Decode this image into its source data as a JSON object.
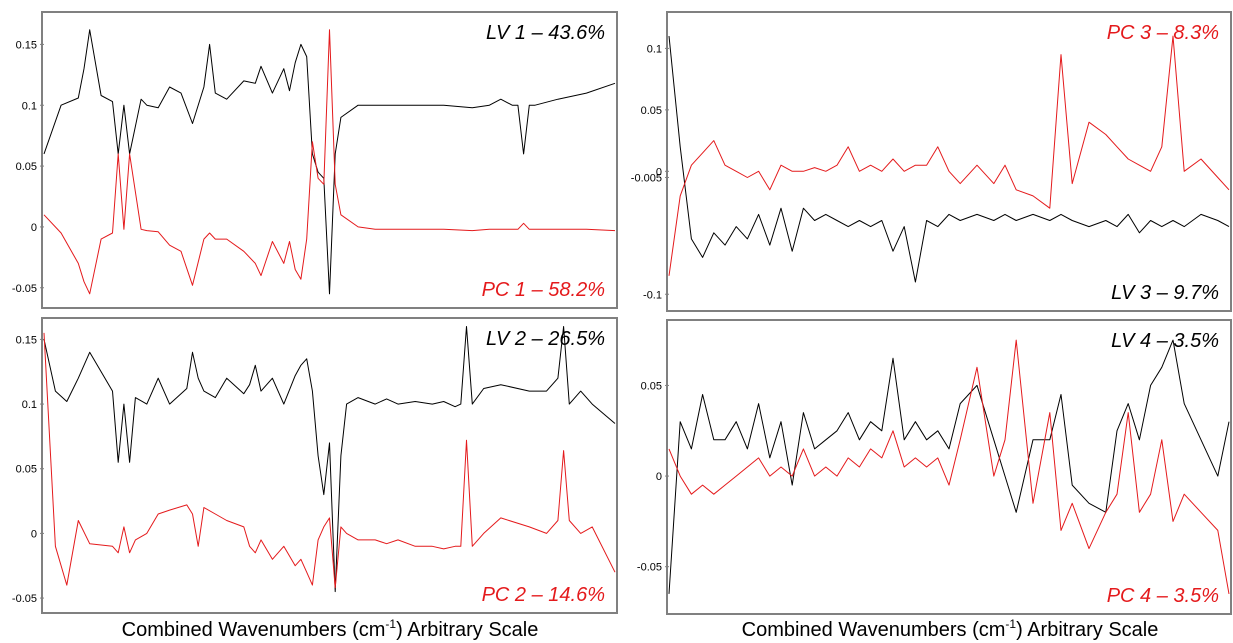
{
  "figure": {
    "left_xlabel": {
      "pre": "Combined Wavenumbers (cm",
      "sup": "-1",
      "post": ") Arbitrary Scale"
    },
    "right_xlabel": {
      "pre": "Combined Wavenumbers (cm",
      "sup": "-1",
      "post": ") Arbitrary Scale"
    }
  },
  "chart_data": [
    {
      "type": "line",
      "panel": "top-left",
      "ylim": [
        -0.065,
        0.175
      ],
      "yticks": [
        -0.05,
        0,
        0.05,
        0.1,
        0.15
      ],
      "ytick_labels": [
        "-0.05",
        "0",
        "0.05",
        "0.1",
        "0.15"
      ],
      "xlim": [
        0,
        100
      ],
      "annotations": [
        {
          "text": "LV 1 – 43.6%",
          "color": "#000000",
          "position": "top-right"
        },
        {
          "text": "PC 1 – 58.2%",
          "color": "#e41a1c",
          "position": "bottom-right"
        }
      ],
      "series": [
        {
          "color": "#000000",
          "x": [
            0,
            3,
            6,
            7,
            8,
            10,
            12,
            13,
            14,
            15,
            17,
            18,
            20,
            22,
            24,
            26,
            28,
            29,
            30,
            32,
            35,
            37,
            38,
            40,
            42,
            43,
            44,
            45,
            46,
            47,
            48,
            49,
            50,
            51,
            52,
            55,
            58,
            60,
            62,
            65,
            66,
            67,
            68,
            70,
            75,
            78,
            80,
            82,
            83,
            84,
            85,
            86,
            90,
            95,
            100
          ],
          "y": [
            0.06,
            0.1,
            0.106,
            0.13,
            0.162,
            0.108,
            0.103,
            0.06,
            0.1,
            0.06,
            0.105,
            0.1,
            0.098,
            0.115,
            0.11,
            0.085,
            0.115,
            0.15,
            0.11,
            0.105,
            0.12,
            0.118,
            0.132,
            0.11,
            0.13,
            0.112,
            0.135,
            0.15,
            0.14,
            0.06,
            0.045,
            0.04,
            -0.055,
            0.06,
            0.09,
            0.1,
            0.1,
            0.1,
            0.1,
            0.1,
            0.1,
            0.1,
            0.1,
            0.1,
            0.098,
            0.1,
            0.105,
            0.1,
            0.1,
            0.06,
            0.1,
            0.1,
            0.105,
            0.11,
            0.118
          ]
        },
        {
          "color": "#e41a1c",
          "x": [
            0,
            3,
            6,
            7,
            8,
            10,
            12,
            13,
            14,
            15,
            17,
            18,
            20,
            22,
            24,
            26,
            28,
            29,
            30,
            32,
            35,
            37,
            38,
            40,
            42,
            43,
            44,
            45,
            46,
            47,
            48,
            49,
            50,
            51,
            52,
            55,
            58,
            60,
            62,
            65,
            66,
            67,
            68,
            70,
            75,
            78,
            80,
            82,
            83,
            84,
            85,
            86,
            90,
            95,
            100
          ],
          "y": [
            0.01,
            -0.005,
            -0.03,
            -0.045,
            -0.055,
            -0.01,
            -0.005,
            0.06,
            -0.002,
            0.06,
            -0.002,
            -0.003,
            -0.004,
            -0.015,
            -0.02,
            -0.048,
            -0.01,
            -0.005,
            -0.01,
            -0.01,
            -0.02,
            -0.03,
            -0.04,
            -0.012,
            -0.03,
            -0.012,
            -0.035,
            -0.043,
            -0.01,
            0.07,
            0.04,
            0.035,
            0.162,
            0.035,
            0.01,
            0,
            -0.002,
            -0.002,
            -0.002,
            -0.002,
            -0.002,
            -0.002,
            -0.002,
            -0.002,
            -0.003,
            -0.002,
            -0.002,
            -0.002,
            -0.002,
            0.003,
            -0.002,
            -0.002,
            -0.002,
            -0.002,
            -0.003
          ]
        }
      ]
    },
    {
      "type": "line",
      "panel": "bottom-left",
      "ylim": [
        -0.06,
        0.165
      ],
      "yticks": [
        -0.05,
        0,
        0.05,
        0.1,
        0.15
      ],
      "ytick_labels": [
        "-0.05",
        "0",
        "0.05",
        "0.1",
        "0.15"
      ],
      "xlim": [
        0,
        100
      ],
      "annotations": [
        {
          "text": "LV 2 – 26.5%",
          "color": "#000000",
          "position": "top-right"
        },
        {
          "text": "PC 2 – 14.6%",
          "color": "#e41a1c",
          "position": "bottom-right"
        }
      ],
      "series": [
        {
          "color": "#000000",
          "x": [
            0,
            2,
            4,
            6,
            8,
            12,
            13,
            14,
            15,
            16,
            18,
            20,
            22,
            25,
            26,
            27,
            28,
            30,
            32,
            35,
            36,
            37,
            38,
            40,
            42,
            44,
            45,
            46,
            47,
            48,
            49,
            50,
            51,
            52,
            53,
            55,
            58,
            60,
            62,
            65,
            68,
            70,
            72,
            73,
            74,
            75,
            77,
            80,
            85,
            88,
            90,
            91,
            92,
            94,
            96,
            100
          ],
          "y": [
            0.15,
            0.11,
            0.102,
            0.12,
            0.14,
            0.11,
            0.055,
            0.1,
            0.055,
            0.105,
            0.1,
            0.12,
            0.1,
            0.112,
            0.14,
            0.12,
            0.11,
            0.105,
            0.12,
            0.108,
            0.115,
            0.13,
            0.11,
            0.12,
            0.1,
            0.122,
            0.13,
            0.135,
            0.11,
            0.06,
            0.03,
            0.07,
            -0.045,
            0.06,
            0.1,
            0.105,
            0.1,
            0.104,
            0.1,
            0.102,
            0.1,
            0.102,
            0.098,
            0.1,
            0.16,
            0.1,
            0.112,
            0.115,
            0.11,
            0.11,
            0.12,
            0.16,
            0.1,
            0.11,
            0.1,
            0.085
          ]
        },
        {
          "color": "#e41a1c",
          "x": [
            0,
            2,
            4,
            6,
            8,
            12,
            13,
            14,
            15,
            16,
            18,
            20,
            22,
            25,
            26,
            27,
            28,
            30,
            32,
            35,
            36,
            37,
            38,
            40,
            42,
            44,
            45,
            46,
            47,
            48,
            49,
            50,
            51,
            52,
            53,
            55,
            58,
            60,
            62,
            65,
            68,
            70,
            72,
            73,
            74,
            75,
            77,
            80,
            85,
            88,
            90,
            91,
            92,
            94,
            96,
            100
          ],
          "y": [
            0.155,
            -0.01,
            -0.04,
            0.01,
            -0.008,
            -0.01,
            -0.015,
            0.005,
            -0.015,
            -0.005,
            0,
            0.015,
            0.018,
            0.022,
            0.015,
            -0.01,
            0.02,
            0.015,
            0.01,
            0.005,
            -0.01,
            -0.015,
            -0.005,
            -0.02,
            -0.01,
            -0.025,
            -0.02,
            -0.03,
            -0.04,
            -0.005,
            0.005,
            0.012,
            -0.042,
            0.005,
            0,
            -0.005,
            -0.005,
            -0.008,
            -0.005,
            -0.01,
            -0.01,
            -0.012,
            -0.01,
            -0.01,
            0.072,
            -0.01,
            0,
            0.012,
            0.005,
            0,
            0.01,
            0.064,
            0.01,
            0,
            0.005,
            -0.03
          ]
        }
      ]
    },
    {
      "type": "line",
      "panel": "top-right",
      "ylim": [
        -0.112,
        0.128
      ],
      "yticks": [
        -0.1,
        -0.005,
        0,
        0.05,
        0.1
      ],
      "ytick_labels": [
        "-0.1",
        "-0.005",
        "0",
        "0.05",
        "0.1"
      ],
      "xlim": [
        0,
        100
      ],
      "annotations": [
        {
          "text": "PC 3 – 8.3%",
          "color": "#e41a1c",
          "position": "top-right"
        },
        {
          "text": "LV 3 – 9.7%",
          "color": "#000000",
          "position": "bottom-right"
        }
      ],
      "series": [
        {
          "color": "#000000",
          "x": [
            0,
            2,
            4,
            6,
            8,
            10,
            12,
            14,
            16,
            18,
            20,
            22,
            24,
            26,
            28,
            30,
            32,
            34,
            36,
            38,
            40,
            42,
            44,
            46,
            48,
            50,
            52,
            55,
            58,
            60,
            62,
            65,
            68,
            70,
            72,
            75,
            78,
            80,
            82,
            84,
            86,
            88,
            90,
            92,
            95,
            98,
            100
          ],
          "y": [
            0.11,
            0.02,
            -0.055,
            -0.07,
            -0.05,
            -0.06,
            -0.045,
            -0.055,
            -0.035,
            -0.06,
            -0.03,
            -0.065,
            -0.03,
            -0.04,
            -0.035,
            -0.04,
            -0.045,
            -0.04,
            -0.045,
            -0.04,
            -0.065,
            -0.045,
            -0.09,
            -0.04,
            -0.045,
            -0.035,
            -0.04,
            -0.035,
            -0.04,
            -0.035,
            -0.04,
            -0.035,
            -0.04,
            -0.035,
            -0.04,
            -0.045,
            -0.04,
            -0.045,
            -0.035,
            -0.05,
            -0.04,
            -0.045,
            -0.04,
            -0.045,
            -0.035,
            -0.04,
            -0.045
          ]
        },
        {
          "color": "#e41a1c",
          "x": [
            0,
            2,
            4,
            6,
            8,
            10,
            12,
            14,
            16,
            18,
            20,
            22,
            24,
            26,
            28,
            30,
            32,
            34,
            36,
            38,
            40,
            42,
            44,
            46,
            48,
            50,
            52,
            55,
            58,
            60,
            62,
            65,
            68,
            70,
            72,
            75,
            78,
            80,
            82,
            84,
            86,
            88,
            90,
            92,
            95,
            98,
            100
          ],
          "y": [
            -0.085,
            -0.02,
            0.005,
            0.015,
            0.025,
            0.005,
            0.0,
            -0.005,
            0.0,
            -0.015,
            0.005,
            0.0,
            0.0,
            0.003,
            0.0,
            0.005,
            0.02,
            0.0,
            0.005,
            0.0,
            0.01,
            0.0,
            0.005,
            0.005,
            0.02,
            0.0,
            -0.01,
            0.005,
            -0.01,
            0.005,
            -0.015,
            -0.02,
            -0.03,
            0.095,
            -0.01,
            0.04,
            0.03,
            0.02,
            0.01,
            0.005,
            0.0,
            0.02,
            0.11,
            0.0,
            0.01,
            -0.005,
            -0.015
          ]
        }
      ]
    },
    {
      "type": "line",
      "panel": "bottom-right",
      "ylim": [
        -0.075,
        0.085
      ],
      "yticks": [
        -0.05,
        0,
        0.05
      ],
      "ytick_labels": [
        "-0.05",
        "0",
        "0.05"
      ],
      "xlim": [
        0,
        100
      ],
      "annotations": [
        {
          "text": "LV 4 – 3.5%",
          "color": "#000000",
          "position": "top-right"
        },
        {
          "text": "PC 4 – 3.5%",
          "color": "#e41a1c",
          "position": "bottom-right"
        }
      ],
      "series": [
        {
          "color": "#000000",
          "x": [
            0,
            2,
            4,
            6,
            8,
            10,
            12,
            14,
            16,
            18,
            20,
            22,
            24,
            26,
            28,
            30,
            32,
            34,
            36,
            38,
            40,
            42,
            44,
            46,
            48,
            50,
            52,
            55,
            58,
            60,
            62,
            65,
            68,
            70,
            72,
            75,
            78,
            80,
            82,
            84,
            86,
            88,
            90,
            92,
            95,
            98,
            100
          ],
          "y": [
            -0.065,
            0.03,
            0.015,
            0.045,
            0.02,
            0.02,
            0.03,
            0.015,
            0.04,
            0.01,
            0.03,
            -0.005,
            0.035,
            0.015,
            0.02,
            0.025,
            0.035,
            0.02,
            0.03,
            0.025,
            0.065,
            0.02,
            0.03,
            0.02,
            0.025,
            0.015,
            0.04,
            0.05,
            0.02,
            0.0,
            -0.02,
            0.02,
            0.02,
            0.045,
            -0.005,
            -0.015,
            -0.02,
            0.025,
            0.04,
            0.02,
            0.05,
            0.06,
            0.075,
            0.04,
            0.02,
            0.0,
            0.03
          ]
        },
        {
          "color": "#e41a1c",
          "x": [
            0,
            2,
            4,
            6,
            8,
            10,
            12,
            14,
            16,
            18,
            20,
            22,
            24,
            26,
            28,
            30,
            32,
            34,
            36,
            38,
            40,
            42,
            44,
            46,
            48,
            50,
            52,
            55,
            58,
            60,
            62,
            65,
            68,
            70,
            72,
            75,
            78,
            80,
            82,
            84,
            86,
            88,
            90,
            92,
            95,
            98,
            100
          ],
          "y": [
            0.015,
            0.0,
            -0.01,
            -0.005,
            -0.01,
            -0.005,
            0.0,
            0.005,
            0.01,
            0.0,
            0.005,
            0.0,
            0.015,
            0.0,
            0.005,
            0.0,
            0.01,
            0.005,
            0.015,
            0.01,
            0.025,
            0.005,
            0.01,
            0.005,
            0.01,
            -0.005,
            0.02,
            0.06,
            0.0,
            0.02,
            0.075,
            -0.015,
            0.035,
            -0.03,
            -0.015,
            -0.04,
            -0.02,
            -0.01,
            0.035,
            -0.02,
            -0.01,
            0.02,
            -0.025,
            -0.01,
            -0.02,
            -0.03,
            -0.065
          ]
        }
      ]
    }
  ]
}
